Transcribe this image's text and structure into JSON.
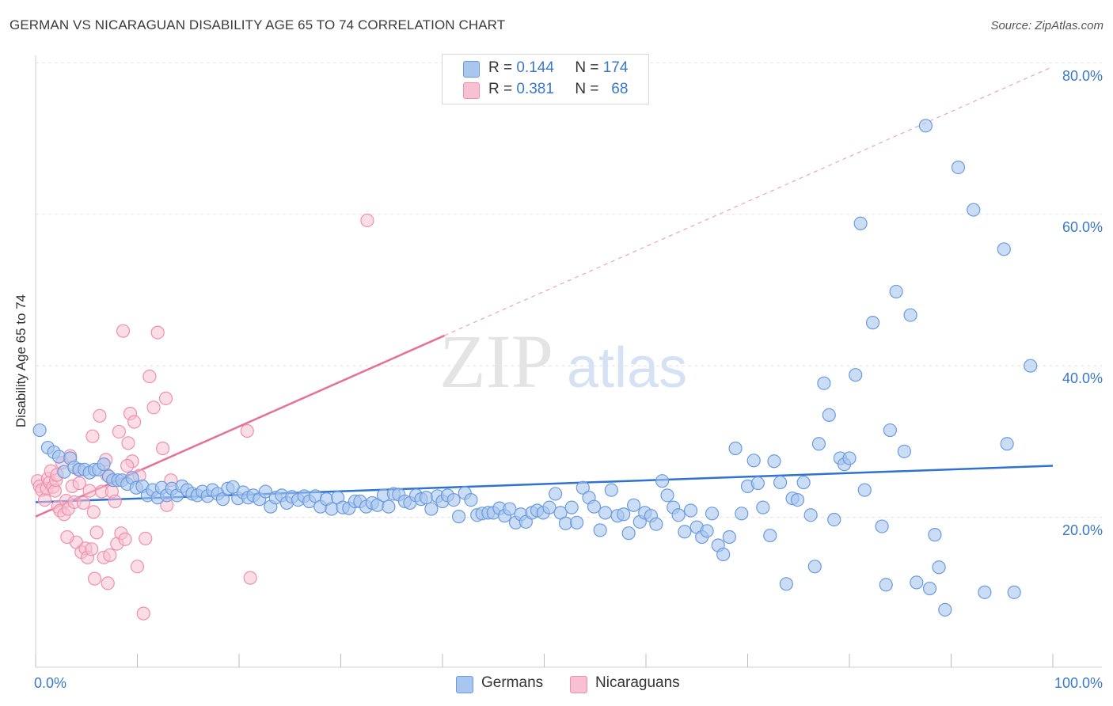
{
  "title": "GERMAN VS NICARAGUAN DISABILITY AGE 65 TO 74 CORRELATION CHART",
  "source": "Source: ZipAtlas.com",
  "watermark": {
    "zip": "ZIP",
    "atlas": "atlas"
  },
  "legend": {
    "germans": {
      "r_label": "R =",
      "r_value": "0.144",
      "n_label": "N =",
      "n_value": "174"
    },
    "nicaraguans": {
      "r_label": "R =",
      "r_value": "0.381",
      "n_label": "N =",
      "n_value": "68"
    }
  },
  "bottom_legend": {
    "germans": "Germans",
    "nicaraguans": "Nicaraguans"
  },
  "colors": {
    "blue_fill": "#a9c6ef",
    "blue_stroke": "#6a9be0",
    "blue_line": "#2f72d0",
    "pink_fill": "#f7c1d2",
    "pink_stroke": "#ee8fae",
    "pink_line": "#e7709a",
    "axis_label": "#3a78c9",
    "grid": "#e2e2e2"
  },
  "chart_data": {
    "type": "scatter",
    "title": "GERMAN VS NICARAGUAN DISABILITY AGE 65 TO 74 CORRELATION CHART",
    "xlabel": "",
    "ylabel": "Disability Age 65 to 74",
    "xlim": [
      0,
      100
    ],
    "ylim": [
      0,
      80
    ],
    "x_tick_labels": [
      "0.0%",
      "100.0%"
    ],
    "y_tick_labels": [
      "20.0%",
      "40.0%",
      "60.0%",
      "80.0%"
    ],
    "y_ticks": [
      20,
      40,
      60,
      80
    ],
    "grid": true,
    "legend_position": "top-center",
    "series": [
      {
        "name": "Germans",
        "R": 0.144,
        "N": 174,
        "trend": {
          "x": [
            0,
            100
          ],
          "y": [
            22.0,
            26.8
          ]
        },
        "points": [
          [
            0.4,
            31.5
          ],
          [
            1.2,
            29.2
          ],
          [
            1.8,
            28.6
          ],
          [
            2.3,
            28.0
          ],
          [
            2.8,
            26.0
          ],
          [
            3.4,
            27.8
          ],
          [
            3.8,
            26.6
          ],
          [
            4.3,
            26.3
          ],
          [
            4.8,
            26.3
          ],
          [
            5.3,
            25.9
          ],
          [
            5.8,
            26.3
          ],
          [
            6.2,
            26.3
          ],
          [
            6.7,
            27.0
          ],
          [
            7.2,
            25.4
          ],
          [
            7.6,
            24.9
          ],
          [
            8.1,
            24.9
          ],
          [
            8.5,
            24.9
          ],
          [
            9.0,
            24.4
          ],
          [
            9.5,
            25.2
          ],
          [
            9.9,
            23.9
          ],
          [
            10.5,
            24.1
          ],
          [
            11.0,
            22.9
          ],
          [
            11.5,
            23.6
          ],
          [
            12.0,
            22.6
          ],
          [
            12.4,
            23.9
          ],
          [
            12.9,
            22.9
          ],
          [
            13.4,
            23.8
          ],
          [
            13.9,
            22.9
          ],
          [
            14.4,
            24.1
          ],
          [
            14.9,
            23.6
          ],
          [
            15.4,
            23.1
          ],
          [
            15.9,
            22.9
          ],
          [
            16.4,
            23.4
          ],
          [
            16.9,
            22.8
          ],
          [
            17.4,
            23.6
          ],
          [
            17.9,
            23.1
          ],
          [
            18.4,
            22.4
          ],
          [
            18.9,
            23.8
          ],
          [
            19.4,
            24.0
          ],
          [
            19.9,
            22.5
          ],
          [
            20.4,
            23.3
          ],
          [
            20.9,
            22.6
          ],
          [
            21.4,
            22.9
          ],
          [
            22.0,
            22.4
          ],
          [
            22.6,
            23.4
          ],
          [
            23.1,
            21.4
          ],
          [
            23.6,
            22.6
          ],
          [
            24.2,
            22.9
          ],
          [
            24.7,
            21.9
          ],
          [
            25.2,
            22.7
          ],
          [
            25.8,
            22.3
          ],
          [
            26.4,
            22.8
          ],
          [
            26.9,
            22.1
          ],
          [
            27.5,
            22.8
          ],
          [
            28.0,
            21.4
          ],
          [
            28.6,
            22.4
          ],
          [
            29.1,
            21.1
          ],
          [
            29.7,
            22.6
          ],
          [
            30.2,
            21.3
          ],
          [
            30.8,
            21.2
          ],
          [
            31.4,
            22.1
          ],
          [
            31.9,
            22.1
          ],
          [
            32.5,
            21.4
          ],
          [
            33.1,
            21.9
          ],
          [
            33.6,
            21.6
          ],
          [
            34.2,
            22.9
          ],
          [
            34.7,
            21.4
          ],
          [
            35.2,
            23.1
          ],
          [
            35.7,
            23.0
          ],
          [
            36.3,
            22.1
          ],
          [
            36.8,
            21.9
          ],
          [
            37.4,
            22.9
          ],
          [
            37.9,
            22.4
          ],
          [
            38.4,
            22.6
          ],
          [
            38.9,
            21.1
          ],
          [
            39.5,
            22.8
          ],
          [
            40.0,
            22.1
          ],
          [
            40.5,
            22.9
          ],
          [
            41.1,
            22.3
          ],
          [
            41.6,
            20.1
          ],
          [
            42.2,
            23.2
          ],
          [
            42.8,
            22.3
          ],
          [
            43.4,
            20.3
          ],
          [
            43.9,
            20.5
          ],
          [
            44.5,
            20.6
          ],
          [
            45.0,
            20.6
          ],
          [
            45.6,
            21.2
          ],
          [
            46.1,
            20.2
          ],
          [
            46.6,
            21.1
          ],
          [
            47.2,
            19.3
          ],
          [
            47.7,
            20.4
          ],
          [
            48.2,
            19.4
          ],
          [
            48.8,
            20.6
          ],
          [
            49.3,
            20.9
          ],
          [
            49.9,
            20.6
          ],
          [
            50.5,
            21.3
          ],
          [
            51.1,
            23.1
          ],
          [
            51.6,
            20.6
          ],
          [
            52.1,
            19.2
          ],
          [
            52.7,
            21.3
          ],
          [
            53.2,
            19.3
          ],
          [
            53.8,
            23.9
          ],
          [
            54.4,
            22.6
          ],
          [
            54.9,
            21.4
          ],
          [
            55.5,
            18.3
          ],
          [
            56.0,
            20.6
          ],
          [
            56.6,
            23.6
          ],
          [
            57.2,
            20.2
          ],
          [
            57.8,
            20.4
          ],
          [
            58.3,
            17.9
          ],
          [
            58.8,
            21.6
          ],
          [
            59.4,
            19.4
          ],
          [
            59.9,
            20.6
          ],
          [
            60.5,
            20.2
          ],
          [
            61.0,
            19.1
          ],
          [
            61.6,
            24.8
          ],
          [
            62.1,
            22.9
          ],
          [
            62.7,
            21.3
          ],
          [
            63.2,
            20.3
          ],
          [
            63.8,
            18.1
          ],
          [
            64.4,
            20.9
          ],
          [
            65.0,
            18.7
          ],
          [
            65.5,
            17.4
          ],
          [
            66.0,
            18.2
          ],
          [
            66.5,
            20.5
          ],
          [
            67.1,
            16.3
          ],
          [
            67.6,
            15.1
          ],
          [
            68.2,
            17.4
          ],
          [
            68.8,
            29.1
          ],
          [
            69.4,
            20.5
          ],
          [
            70.0,
            24.1
          ],
          [
            70.6,
            27.5
          ],
          [
            71.0,
            24.5
          ],
          [
            71.5,
            21.3
          ],
          [
            72.2,
            17.6
          ],
          [
            72.6,
            27.4
          ],
          [
            73.2,
            24.6
          ],
          [
            73.8,
            11.2
          ],
          [
            74.4,
            22.5
          ],
          [
            74.9,
            22.3
          ],
          [
            75.5,
            24.6
          ],
          [
            76.2,
            20.3
          ],
          [
            76.6,
            13.5
          ],
          [
            77.0,
            29.7
          ],
          [
            77.5,
            37.7
          ],
          [
            78.0,
            33.5
          ],
          [
            78.5,
            19.7
          ],
          [
            79.1,
            27.8
          ],
          [
            79.5,
            27.0
          ],
          [
            80.0,
            27.8
          ],
          [
            80.6,
            38.8
          ],
          [
            81.1,
            58.8
          ],
          [
            81.5,
            23.6
          ],
          [
            82.3,
            45.7
          ],
          [
            83.2,
            18.8
          ],
          [
            83.6,
            11.1
          ],
          [
            84.0,
            31.5
          ],
          [
            84.6,
            49.8
          ],
          [
            85.4,
            28.7
          ],
          [
            86.0,
            46.7
          ],
          [
            86.6,
            11.4
          ],
          [
            87.5,
            71.7
          ],
          [
            87.9,
            10.6
          ],
          [
            88.4,
            17.7
          ],
          [
            88.8,
            13.4
          ],
          [
            89.4,
            7.8
          ],
          [
            90.7,
            66.2
          ],
          [
            92.2,
            60.6
          ],
          [
            93.3,
            10.1
          ],
          [
            95.2,
            55.4
          ],
          [
            96.2,
            10.1
          ],
          [
            95.5,
            29.7
          ],
          [
            97.8,
            40.0
          ]
        ]
      },
      {
        "name": "Nicaraguans",
        "R": 0.381,
        "N": 68,
        "trend": {
          "x": [
            0,
            40.2
          ],
          "y": [
            20.1,
            44.0
          ],
          "dash_extension": {
            "x": [
              40.2,
              100
            ],
            "y": [
              44.0,
              79.5
            ]
          }
        },
        "points": [
          [
            0.2,
            24.8
          ],
          [
            0.4,
            24.1
          ],
          [
            0.6,
            23.6
          ],
          [
            0.9,
            22.3
          ],
          [
            1.1,
            23.8
          ],
          [
            1.2,
            25.1
          ],
          [
            1.4,
            24.6
          ],
          [
            1.5,
            26.1
          ],
          [
            1.7,
            24.0
          ],
          [
            1.9,
            23.5
          ],
          [
            2.0,
            24.9
          ],
          [
            2.2,
            21.4
          ],
          [
            2.4,
            20.9
          ],
          [
            2.6,
            27.2
          ],
          [
            2.8,
            20.4
          ],
          [
            3.0,
            22.2
          ],
          [
            3.2,
            21.1
          ],
          [
            3.4,
            28.1
          ],
          [
            3.6,
            24.1
          ],
          [
            3.8,
            22.0
          ],
          [
            4.0,
            16.7
          ],
          [
            4.3,
            24.5
          ],
          [
            4.5,
            15.4
          ],
          [
            4.7,
            21.9
          ],
          [
            4.9,
            15.9
          ],
          [
            5.1,
            14.7
          ],
          [
            5.3,
            23.5
          ],
          [
            5.5,
            15.8
          ],
          [
            5.6,
            30.7
          ],
          [
            5.8,
            11.9
          ],
          [
            6.0,
            18.0
          ],
          [
            6.3,
            33.4
          ],
          [
            6.5,
            23.4
          ],
          [
            6.7,
            14.7
          ],
          [
            6.9,
            27.6
          ],
          [
            7.1,
            11.3
          ],
          [
            7.3,
            15.0
          ],
          [
            7.5,
            23.4
          ],
          [
            7.8,
            22.1
          ],
          [
            8.0,
            16.5
          ],
          [
            8.2,
            31.3
          ],
          [
            8.4,
            17.9
          ],
          [
            8.6,
            44.6
          ],
          [
            8.8,
            17.1
          ],
          [
            9.1,
            29.8
          ],
          [
            9.3,
            33.7
          ],
          [
            9.5,
            27.4
          ],
          [
            9.7,
            32.6
          ],
          [
            10.0,
            13.5
          ],
          [
            10.2,
            25.5
          ],
          [
            10.6,
            7.3
          ],
          [
            10.8,
            17.2
          ],
          [
            11.2,
            38.6
          ],
          [
            11.6,
            34.5
          ],
          [
            12.0,
            44.4
          ],
          [
            12.5,
            29.1
          ],
          [
            12.8,
            35.7
          ],
          [
            12.9,
            21.6
          ],
          [
            13.3,
            24.9
          ],
          [
            20.8,
            31.4
          ],
          [
            21.1,
            12.0
          ],
          [
            32.6,
            59.2
          ],
          [
            2.1,
            25.6
          ],
          [
            3.1,
            17.4
          ],
          [
            4.2,
            26.3
          ],
          [
            5.7,
            20.7
          ],
          [
            7.0,
            25.6
          ],
          [
            9.0,
            26.8
          ]
        ]
      }
    ]
  }
}
